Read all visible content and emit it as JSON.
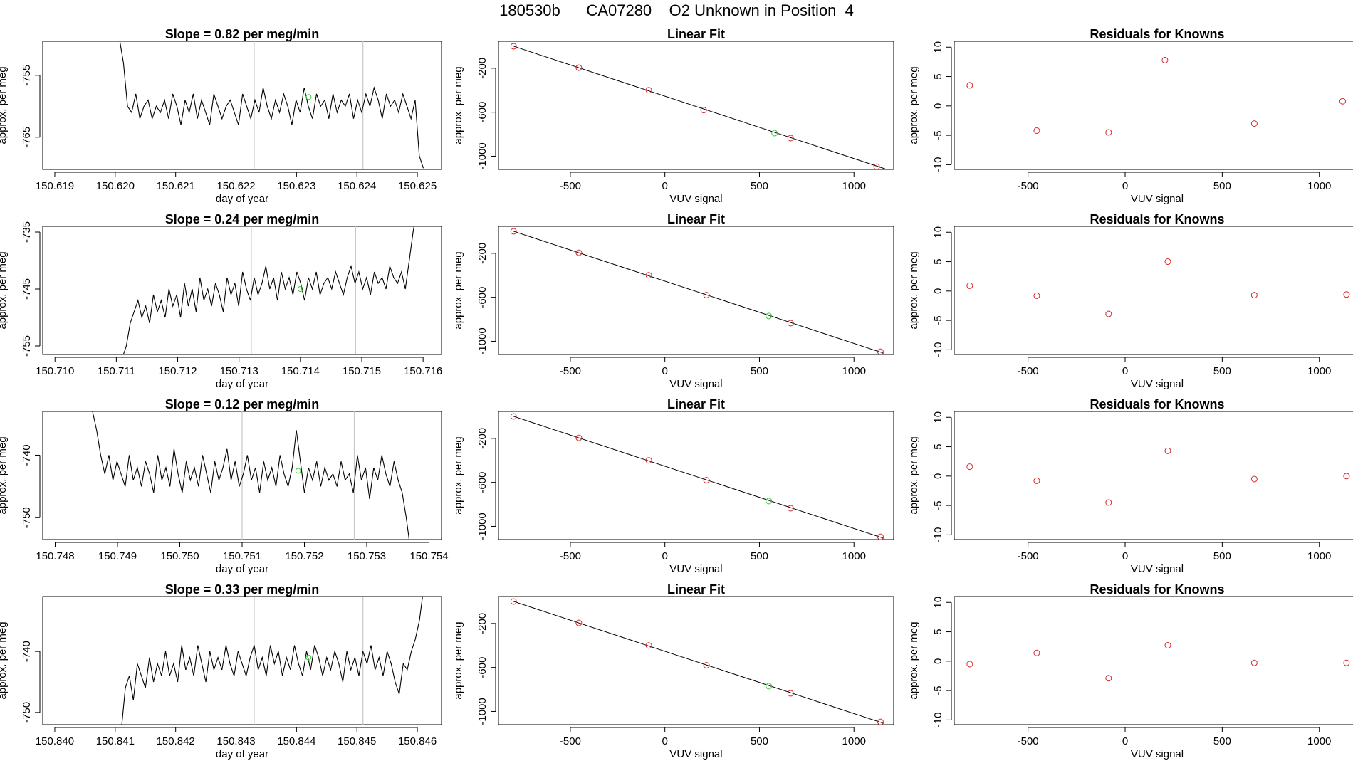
{
  "page_title": "180530b      CA07280    O2 Unknown in Position  4",
  "colors": {
    "trace": "#000000",
    "known": "#d62728",
    "unknown": "#33cc33",
    "marker_line": "#c8c8c8"
  },
  "chart_data": [
    {
      "type": "line",
      "panel": "trace",
      "title": "Slope =  0.82  per meg/min",
      "xlabel": "day of year",
      "ylabel": "approx. per meg",
      "xlim": [
        150.6188,
        150.6254
      ],
      "ylim": [
        -770.2,
        -749.5
      ],
      "xticks": [
        "150.619",
        "150.620",
        "150.621",
        "150.622",
        "150.623",
        "150.624",
        "150.625"
      ],
      "yticks": [
        "-755",
        "-765"
      ],
      "yticks_values": [
        -755,
        -765
      ],
      "vlines": [
        150.6223,
        150.6241
      ],
      "x_start": 150.62,
      "x_end": 150.6251,
      "trace_values": [
        -746,
        -749,
        -753,
        -760,
        -761,
        -758,
        -762,
        -760,
        -759,
        -762,
        -760,
        -761,
        -759,
        -762,
        -758,
        -760,
        -763,
        -759,
        -761,
        -758,
        -762,
        -759,
        -761,
        -763,
        -758,
        -760,
        -762,
        -760,
        -759,
        -761,
        -763,
        -758,
        -760,
        -762,
        -759,
        -761,
        -757,
        -760,
        -762,
        -759,
        -761,
        -758,
        -760,
        -763,
        -759,
        -761,
        -757,
        -760,
        -762,
        -758,
        -760,
        -759,
        -762,
        -758,
        -761,
        -759,
        -760,
        -758,
        -762,
        -759,
        -761,
        -758,
        -760,
        -757,
        -759,
        -762,
        -758,
        -760,
        -759,
        -761,
        -758,
        -760,
        -762,
        -759,
        -768,
        -770
      ],
      "unknown_point": {
        "x": 150.6232,
        "y": -758.5
      }
    },
    {
      "type": "scatter",
      "panel": "fit",
      "title": "Linear Fit",
      "xlabel": "VUV signal",
      "ylabel": "approx. per meg",
      "xlim": [
        -880,
        1210
      ],
      "ylim": [
        -1120,
        45
      ],
      "xticks": [
        "-500",
        "0",
        "500",
        "1000"
      ],
      "xticks_values": [
        -500,
        0,
        500,
        1000
      ],
      "yticks": [
        "-200",
        "-600",
        "-1000"
      ],
      "yticks_values": [
        -200,
        -600,
        -1000
      ],
      "known_points": [
        {
          "x": -800,
          "y": 0
        },
        {
          "x": -455,
          "y": -195
        },
        {
          "x": -85,
          "y": -400
        },
        {
          "x": 205,
          "y": -580
        },
        {
          "x": 665,
          "y": -835
        },
        {
          "x": 1120,
          "y": -1095
        }
      ],
      "unknown_point": {
        "x": 580,
        "y": -790
      },
      "fit_line": [
        {
          "x": -800,
          "y": 0
        },
        {
          "x": 1165,
          "y": -1115
        }
      ]
    },
    {
      "type": "scatter",
      "panel": "residuals",
      "title": "Residuals for Knowns",
      "xlabel": "VUV signal",
      "ylabel": "approx. per meg",
      "xlim": [
        -880,
        1210
      ],
      "ylim": [
        -10.8,
        11.0
      ],
      "xticks": [
        "-500",
        "0",
        "500",
        "1000"
      ],
      "xticks_values": [
        -500,
        0,
        500,
        1000
      ],
      "yticks": [
        "-10",
        "-5",
        "0",
        "5",
        "10"
      ],
      "yticks_values": [
        -10,
        -5,
        0,
        5,
        10
      ],
      "known_points": [
        {
          "x": -800,
          "y": 3.5
        },
        {
          "x": -455,
          "y": -4.2
        },
        {
          "x": -85,
          "y": -4.5
        },
        {
          "x": 205,
          "y": 7.8
        },
        {
          "x": 665,
          "y": -3.0
        },
        {
          "x": 1120,
          "y": 0.8
        }
      ]
    },
    {
      "type": "line",
      "panel": "trace",
      "title": "Slope =  0.24  per meg/min",
      "xlabel": "day of year",
      "ylabel": "approx. per meg",
      "xlim": [
        150.7098,
        150.7163
      ],
      "ylim": [
        -756.5,
        -734.0
      ],
      "xticks": [
        "150.710",
        "150.711",
        "150.712",
        "150.713",
        "150.714",
        "150.715",
        "150.716"
      ],
      "yticks": [
        "-735",
        "-745",
        "-755"
      ],
      "yticks_values": [
        -735,
        -745,
        -755
      ],
      "vlines": [
        150.7132,
        150.7149
      ],
      "x_start": 150.7111,
      "x_end": 150.7159,
      "trace_values": [
        -757,
        -755,
        -751,
        -749,
        -747,
        -750,
        -748,
        -751,
        -746,
        -749,
        -747,
        -750,
        -745,
        -748,
        -746,
        -750,
        -744,
        -748,
        -745,
        -749,
        -743,
        -747,
        -745,
        -748,
        -744,
        -746,
        -749,
        -743,
        -746,
        -744,
        -748,
        -742,
        -745,
        -747,
        -743,
        -746,
        -744,
        -741,
        -745,
        -743,
        -747,
        -742,
        -745,
        -743,
        -746,
        -742,
        -744,
        -747,
        -743,
        -745,
        -742,
        -746,
        -744,
        -743,
        -745,
        -742,
        -744,
        -746,
        -743,
        -741,
        -744,
        -742,
        -745,
        -743,
        -746,
        -742,
        -744,
        -743,
        -745,
        -741,
        -743,
        -744,
        -742,
        -745,
        -740,
        -735,
        -731
      ],
      "unknown_point": {
        "x": 150.714,
        "y": -745
      }
    },
    {
      "type": "scatter",
      "panel": "fit",
      "title": "Linear Fit",
      "xlabel": "VUV signal",
      "ylabel": "approx. per meg",
      "xlim": [
        -880,
        1210
      ],
      "ylim": [
        -1120,
        45
      ],
      "xticks": [
        "-500",
        "0",
        "500",
        "1000"
      ],
      "xticks_values": [
        -500,
        0,
        500,
        1000
      ],
      "yticks": [
        "-200",
        "-600",
        "-1000"
      ],
      "yticks_values": [
        -200,
        -600,
        -1000
      ],
      "known_points": [
        {
          "x": -800,
          "y": 0
        },
        {
          "x": -455,
          "y": -195
        },
        {
          "x": -85,
          "y": -400
        },
        {
          "x": 220,
          "y": -580
        },
        {
          "x": 665,
          "y": -835
        },
        {
          "x": 1140,
          "y": -1095
        }
      ],
      "unknown_point": {
        "x": 550,
        "y": -770
      },
      "fit_line": [
        {
          "x": -800,
          "y": 0
        },
        {
          "x": 1160,
          "y": -1110
        }
      ]
    },
    {
      "type": "scatter",
      "panel": "residuals",
      "title": "Residuals for Knowns",
      "xlabel": "VUV signal",
      "ylabel": "approx. per meg",
      "xlim": [
        -880,
        1210
      ],
      "ylim": [
        -10.8,
        11.0
      ],
      "xticks": [
        "-500",
        "0",
        "500",
        "1000"
      ],
      "xticks_values": [
        -500,
        0,
        500,
        1000
      ],
      "yticks": [
        "-10",
        "-5",
        "0",
        "5",
        "10"
      ],
      "yticks_values": [
        -10,
        -5,
        0,
        5,
        10
      ],
      "known_points": [
        {
          "x": -800,
          "y": 0.9
        },
        {
          "x": -455,
          "y": -0.8
        },
        {
          "x": -85,
          "y": -3.9
        },
        {
          "x": 220,
          "y": 5.0
        },
        {
          "x": 665,
          "y": -0.7
        },
        {
          "x": 1140,
          "y": -0.6
        }
      ]
    },
    {
      "type": "line",
      "panel": "trace",
      "title": "Slope =  0.12  per meg/min",
      "xlabel": "day of year",
      "ylabel": "approx. per meg",
      "xlim": [
        150.7478,
        150.7542
      ],
      "ylim": [
        -753.5,
        -733.0
      ],
      "xticks": [
        "150.748",
        "150.749",
        "150.750",
        "150.751",
        "150.752",
        "150.753",
        "150.754"
      ],
      "yticks": [
        "-740",
        "-750"
      ],
      "yticks_values": [
        -740,
        -750
      ],
      "vlines": [
        150.751,
        150.7528
      ],
      "x_start": 150.7486,
      "x_end": 150.7537,
      "trace_values": [
        -733,
        -736,
        -740,
        -743,
        -740,
        -744,
        -741,
        -743,
        -745,
        -740,
        -744,
        -742,
        -745,
        -741,
        -743,
        -746,
        -740,
        -744,
        -742,
        -745,
        -739,
        -743,
        -746,
        -741,
        -744,
        -742,
        -745,
        -740,
        -743,
        -746,
        -741,
        -744,
        -742,
        -739,
        -744,
        -741,
        -745,
        -743,
        -740,
        -744,
        -742,
        -746,
        -741,
        -744,
        -742,
        -745,
        -740,
        -743,
        -745,
        -742,
        -736,
        -741,
        -746,
        -742,
        -744,
        -741,
        -745,
        -742,
        -744,
        -743,
        -745,
        -741,
        -744,
        -743,
        -746,
        -740,
        -744,
        -742,
        -747,
        -742,
        -744,
        -740,
        -743,
        -745,
        -741,
        -744,
        -746,
        -750,
        -755
      ],
      "unknown_point": {
        "x": 150.7519,
        "y": -742.5
      }
    },
    {
      "type": "scatter",
      "panel": "fit",
      "title": "Linear Fit",
      "xlabel": "VUV signal",
      "ylabel": "approx. per meg",
      "xlim": [
        -880,
        1210
      ],
      "ylim": [
        -1120,
        45
      ],
      "xticks": [
        "-500",
        "0",
        "500",
        "1000"
      ],
      "xticks_values": [
        -500,
        0,
        500,
        1000
      ],
      "yticks": [
        "-200",
        "-600",
        "-1000"
      ],
      "yticks_values": [
        -200,
        -600,
        -1000
      ],
      "known_points": [
        {
          "x": -800,
          "y": 0
        },
        {
          "x": -455,
          "y": -195
        },
        {
          "x": -85,
          "y": -400
        },
        {
          "x": 220,
          "y": -580
        },
        {
          "x": 665,
          "y": -835
        },
        {
          "x": 1140,
          "y": -1095
        }
      ],
      "unknown_point": {
        "x": 550,
        "y": -770
      },
      "fit_line": [
        {
          "x": -800,
          "y": 0
        },
        {
          "x": 1160,
          "y": -1110
        }
      ]
    },
    {
      "type": "scatter",
      "panel": "residuals",
      "title": "Residuals for Knowns",
      "xlabel": "VUV signal",
      "ylabel": "approx. per meg",
      "xlim": [
        -880,
        1210
      ],
      "ylim": [
        -10.8,
        11.0
      ],
      "xticks": [
        "-500",
        "0",
        "500",
        "1000"
      ],
      "xticks_values": [
        -500,
        0,
        500,
        1000
      ],
      "yticks": [
        "-10",
        "-5",
        "0",
        "5",
        "10"
      ],
      "yticks_values": [
        -10,
        -5,
        0,
        5,
        10
      ],
      "known_points": [
        {
          "x": -800,
          "y": 1.6
        },
        {
          "x": -455,
          "y": -0.8
        },
        {
          "x": -85,
          "y": -4.5
        },
        {
          "x": 220,
          "y": 4.3
        },
        {
          "x": 665,
          "y": -0.5
        },
        {
          "x": 1140,
          "y": 0.0
        }
      ]
    },
    {
      "type": "line",
      "panel": "trace",
      "title": "Slope =  0.33  per meg/min",
      "xlabel": "day of year",
      "ylabel": "approx. per meg",
      "xlim": [
        150.8398,
        150.8464
      ],
      "ylim": [
        -752.0,
        -731.0
      ],
      "xticks": [
        "150.840",
        "150.841",
        "150.842",
        "150.843",
        "150.844",
        "150.845",
        "150.846"
      ],
      "yticks": [
        "-740",
        "-750"
      ],
      "yticks_values": [
        -740,
        -750
      ],
      "vlines": [
        150.8433,
        150.8451
      ],
      "x_start": 150.8411,
      "x_end": 150.8461,
      "trace_values": [
        -753,
        -746,
        -744,
        -748,
        -742,
        -744,
        -746,
        -741,
        -745,
        -742,
        -744,
        -740,
        -744,
        -742,
        -745,
        -739,
        -743,
        -741,
        -744,
        -739,
        -742,
        -745,
        -740,
        -743,
        -741,
        -743,
        -739,
        -742,
        -744,
        -740,
        -742,
        -744,
        -741,
        -739,
        -743,
        -741,
        -744,
        -739,
        -742,
        -740,
        -744,
        -741,
        -743,
        -739,
        -742,
        -744,
        -740,
        -743,
        -739,
        -741,
        -744,
        -741,
        -743,
        -740,
        -742,
        -745,
        -740,
        -743,
        -741,
        -744,
        -740,
        -742,
        -739,
        -743,
        -741,
        -744,
        -740,
        -742,
        -745,
        -747,
        -742,
        -743,
        -740,
        -738,
        -735,
        -730
      ],
      "unknown_point": {
        "x": 150.8442,
        "y": -741
      }
    },
    {
      "type": "scatter",
      "panel": "fit",
      "title": "Linear Fit",
      "xlabel": "VUV signal",
      "ylabel": "approx. per meg",
      "xlim": [
        -880,
        1210
      ],
      "ylim": [
        -1120,
        45
      ],
      "xticks": [
        "-500",
        "0",
        "500",
        "1000"
      ],
      "xticks_values": [
        -500,
        0,
        500,
        1000
      ],
      "yticks": [
        "-200",
        "-600",
        "-1000"
      ],
      "yticks_values": [
        -200,
        -600,
        -1000
      ],
      "known_points": [
        {
          "x": -800,
          "y": 0
        },
        {
          "x": -455,
          "y": -195
        },
        {
          "x": -85,
          "y": -400
        },
        {
          "x": 220,
          "y": -580
        },
        {
          "x": 665,
          "y": -835
        },
        {
          "x": 1140,
          "y": -1095
        }
      ],
      "unknown_point": {
        "x": 550,
        "y": -770
      },
      "fit_line": [
        {
          "x": -800,
          "y": 0
        },
        {
          "x": 1160,
          "y": -1110
        }
      ]
    },
    {
      "type": "scatter",
      "panel": "residuals",
      "title": "Residuals for Knowns",
      "xlabel": "VUV signal",
      "ylabel": "approx. per meg",
      "xlim": [
        -880,
        1210
      ],
      "ylim": [
        -10.8,
        11.0
      ],
      "xticks": [
        "-500",
        "0",
        "500",
        "1000"
      ],
      "xticks_values": [
        -500,
        0,
        500,
        1000
      ],
      "yticks": [
        "-10",
        "-5",
        "0",
        "5",
        "10"
      ],
      "yticks_values": [
        -10,
        -5,
        0,
        5,
        10
      ],
      "known_points": [
        {
          "x": -800,
          "y": -0.5
        },
        {
          "x": -455,
          "y": 1.4
        },
        {
          "x": -85,
          "y": -2.9
        },
        {
          "x": 220,
          "y": 2.7
        },
        {
          "x": 665,
          "y": -0.3
        },
        {
          "x": 1140,
          "y": -0.3
        }
      ]
    }
  ]
}
